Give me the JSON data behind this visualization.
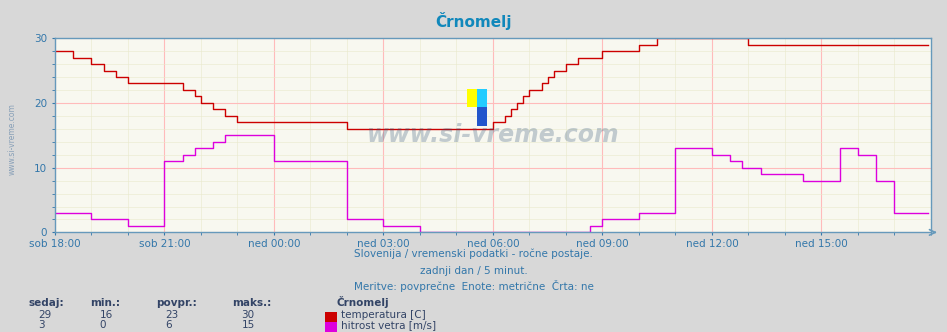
{
  "title": "Črnomelj",
  "title_color": "#1188bb",
  "bg_color": "#d8d8d8",
  "plot_bg_color": "#f8f8f0",
  "grid_color_major": "#ffbbbb",
  "grid_color_minor": "#e8e8cc",
  "x_labels": [
    "sob 18:00",
    "sob 21:00",
    "ned 00:00",
    "ned 03:00",
    "ned 06:00",
    "ned 09:00",
    "ned 12:00",
    "ned 15:00"
  ],
  "x_ticks_norm": [
    0.0,
    0.125,
    0.25,
    0.375,
    0.5,
    0.625,
    0.75,
    0.875
  ],
  "ylim": [
    0,
    30
  ],
  "yticks": [
    0,
    10,
    20,
    30
  ],
  "temp_color": "#cc0000",
  "wind_color": "#dd00dd",
  "axis_color": "#6699bb",
  "tick_color": "#3377aa",
  "watermark": "www.si-vreme.com",
  "watermark_color": "#335577",
  "subtitle_lines": [
    "Slovenija / vremenski podatki - ročne postaje.",
    "zadnji dan / 5 minut.",
    "Meritve: povprečne  Enote: metrične  Črta: ne"
  ],
  "subtitle_color": "#3377aa",
  "legend_header": "Črnomelj",
  "legend_label1": "temperatura [C]",
  "legend_label2": "hitrost vetra [m/s]",
  "legend_color": "#334466",
  "stats_headers": [
    "sedaj:",
    "min.:",
    "povpr.:",
    "maks.:"
  ],
  "stats_temp": [
    29,
    16,
    23,
    30
  ],
  "stats_wind": [
    3,
    0,
    6,
    15
  ],
  "temp_data": [
    28,
    28,
    28,
    28,
    28,
    28,
    27,
    27,
    27,
    27,
    27,
    27,
    26,
    26,
    26,
    26,
    25,
    25,
    25,
    25,
    24,
    24,
    24,
    24,
    23,
    23,
    23,
    23,
    23,
    23,
    23,
    23,
    23,
    23,
    23,
    23,
    23,
    23,
    23,
    23,
    23,
    23,
    22,
    22,
    22,
    22,
    21,
    21,
    20,
    20,
    20,
    20,
    19,
    19,
    19,
    19,
    18,
    18,
    18,
    18,
    17,
    17,
    17,
    17,
    17,
    17,
    17,
    17,
    17,
    17,
    17,
    17,
    17,
    17,
    17,
    17,
    17,
    17,
    17,
    17,
    17,
    17,
    17,
    17,
    17,
    17,
    17,
    17,
    17,
    17,
    17,
    17,
    17,
    17,
    17,
    17,
    16,
    16,
    16,
    16,
    16,
    16,
    16,
    16,
    16,
    16,
    16,
    16,
    16,
    16,
    16,
    16,
    16,
    16,
    16,
    16,
    16,
    16,
    16,
    16,
    16,
    16,
    16,
    16,
    16,
    16,
    16,
    16,
    16,
    16,
    16,
    16,
    16,
    16,
    16,
    16,
    16,
    16,
    16,
    16,
    16,
    16,
    16,
    16,
    17,
    17,
    17,
    17,
    18,
    18,
    19,
    19,
    20,
    20,
    21,
    21,
    22,
    22,
    22,
    22,
    23,
    23,
    24,
    24,
    25,
    25,
    25,
    25,
    26,
    26,
    26,
    26,
    27,
    27,
    27,
    27,
    27,
    27,
    27,
    27,
    28,
    28,
    28,
    28,
    28,
    28,
    28,
    28,
    28,
    28,
    28,
    28,
    29,
    29,
    29,
    29,
    29,
    29,
    30,
    30,
    30,
    30,
    30,
    30,
    30,
    30,
    30,
    30,
    30,
    30,
    30,
    30,
    30,
    30,
    30,
    30,
    30,
    30,
    30,
    30,
    30,
    30,
    30,
    30,
    30,
    30,
    30,
    30,
    29,
    29,
    29,
    29,
    29,
    29,
    29,
    29,
    29,
    29,
    29,
    29,
    29,
    29,
    29,
    29,
    29,
    29,
    29,
    29,
    29,
    29,
    29,
    29,
    29,
    29,
    29,
    29,
    29,
    29,
    29,
    29,
    29,
    29,
    29,
    29,
    29,
    29,
    29,
    29,
    29,
    29,
    29,
    29,
    29,
    29,
    29,
    29,
    29,
    29,
    29,
    29,
    29,
    29,
    29,
    29,
    29,
    29,
    29,
    29
  ],
  "wind_data": [
    3,
    3,
    3,
    3,
    3,
    3,
    3,
    3,
    3,
    3,
    3,
    3,
    2,
    2,
    2,
    2,
    2,
    2,
    2,
    2,
    2,
    2,
    2,
    2,
    1,
    1,
    1,
    1,
    1,
    1,
    1,
    1,
    1,
    1,
    1,
    1,
    11,
    11,
    11,
    11,
    11,
    11,
    12,
    12,
    12,
    12,
    13,
    13,
    13,
    13,
    13,
    13,
    14,
    14,
    14,
    14,
    15,
    15,
    15,
    15,
    15,
    15,
    15,
    15,
    15,
    15,
    15,
    15,
    15,
    15,
    15,
    15,
    11,
    11,
    11,
    11,
    11,
    11,
    11,
    11,
    11,
    11,
    11,
    11,
    11,
    11,
    11,
    11,
    11,
    11,
    11,
    11,
    11,
    11,
    11,
    11,
    2,
    2,
    2,
    2,
    2,
    2,
    2,
    2,
    2,
    2,
    2,
    2,
    1,
    1,
    1,
    1,
    1,
    1,
    1,
    1,
    1,
    1,
    1,
    1,
    0,
    0,
    0,
    0,
    0,
    0,
    0,
    0,
    0,
    0,
    0,
    0,
    0,
    0,
    0,
    0,
    0,
    0,
    0,
    0,
    0,
    0,
    0,
    0,
    0,
    0,
    0,
    0,
    0,
    0,
    0,
    0,
    0,
    0,
    0,
    0,
    0,
    0,
    0,
    0,
    0,
    0,
    0,
    0,
    0,
    0,
    0,
    0,
    0,
    0,
    0,
    0,
    0,
    0,
    0,
    0,
    1,
    1,
    1,
    1,
    2,
    2,
    2,
    2,
    2,
    2,
    2,
    2,
    2,
    2,
    2,
    2,
    3,
    3,
    3,
    3,
    3,
    3,
    3,
    3,
    3,
    3,
    3,
    3,
    13,
    13,
    13,
    13,
    13,
    13,
    13,
    13,
    13,
    13,
    13,
    13,
    12,
    12,
    12,
    12,
    12,
    12,
    11,
    11,
    11,
    11,
    10,
    10,
    10,
    10,
    10,
    10,
    9,
    9,
    9,
    9,
    9,
    9,
    9,
    9,
    9,
    9,
    9,
    9,
    9,
    9,
    8,
    8,
    8,
    8,
    8,
    8,
    8,
    8,
    8,
    8,
    8,
    8,
    13,
    13,
    13,
    13,
    13,
    13,
    12,
    12,
    12,
    12,
    12,
    12,
    8,
    8,
    8,
    8,
    8,
    8,
    3,
    3,
    3,
    3,
    3,
    3,
    3,
    3,
    3,
    3,
    3,
    3
  ]
}
